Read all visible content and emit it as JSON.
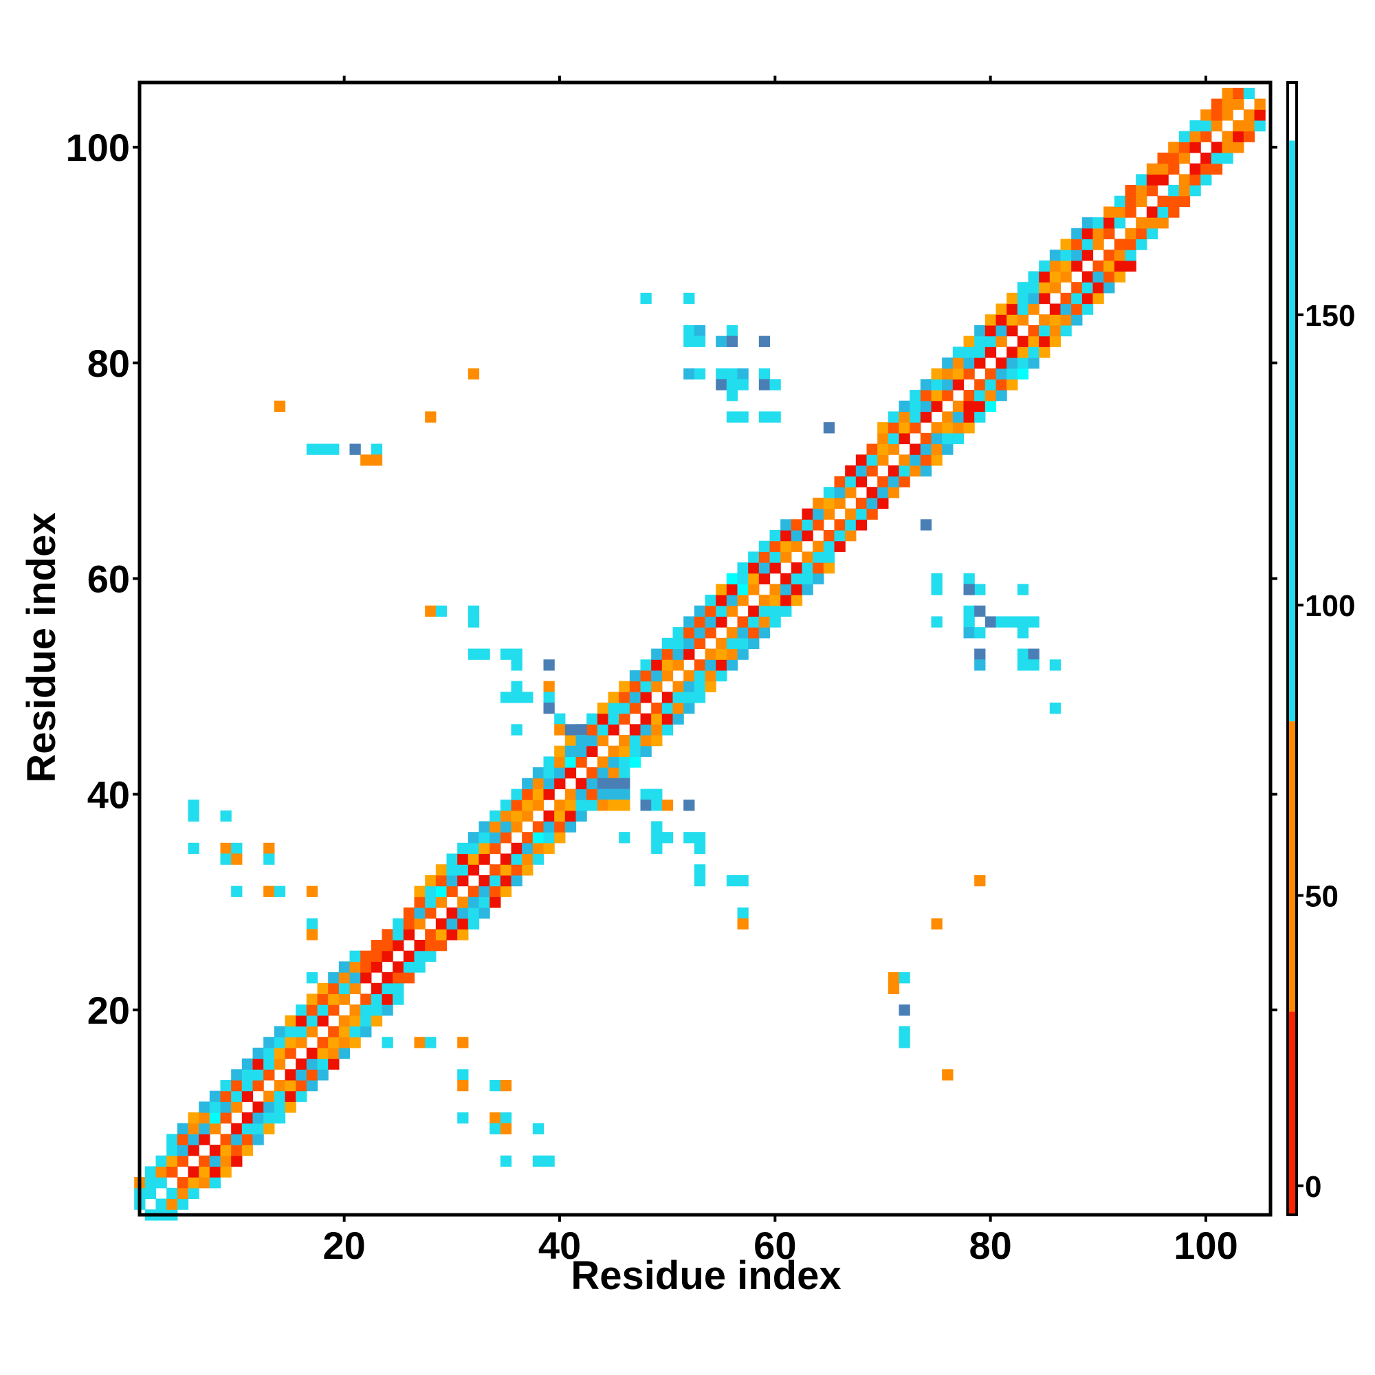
{
  "chart_data": {
    "type": "heatmap",
    "title": "",
    "xlabel": "Residue index",
    "ylabel": "Residue index",
    "xlim": [
      1,
      106
    ],
    "ylim": [
      1,
      106
    ],
    "x_ticks": [
      "20",
      "40",
      "60",
      "80",
      "100"
    ],
    "y_ticks": [
      "20",
      "40",
      "60",
      "80",
      "100"
    ],
    "colorbar": {
      "range": [
        -5,
        190
      ],
      "ticks": [
        "0",
        "50",
        "100",
        "150"
      ],
      "bands": [
        {
          "from": -5,
          "to": 30,
          "color": "#ff2200"
        },
        {
          "from": 30,
          "to": 80,
          "color": "#ff8800"
        },
        {
          "from": 80,
          "to": 180,
          "color": "#22ddee"
        },
        {
          "from": 180,
          "to": 190,
          "color": "#ffffff"
        }
      ]
    },
    "palette": {
      "red": "#ee1100",
      "orange_red": "#ff5500",
      "orange": "#ff8c00",
      "amber": "#ffa500",
      "cyan": "#22ddee",
      "bright_cyan": "#00ffff",
      "sky_blue": "#2bb8e0",
      "steel_blue": "#4a7fb5"
    },
    "diagonal_band": [
      {
        "from": 1,
        "to": 4,
        "half_width": 3,
        "pattern": "cyan"
      },
      {
        "from": 4,
        "to": 22,
        "half_width": 4,
        "pattern": "mixed"
      },
      {
        "from": 22,
        "to": 27,
        "half_width": 3,
        "pattern": "red_cyan"
      },
      {
        "from": 27,
        "to": 47,
        "half_width": 4,
        "pattern": "mixed"
      },
      {
        "from": 47,
        "to": 62,
        "half_width": 4,
        "pattern": "mixed"
      },
      {
        "from": 62,
        "to": 70,
        "half_width": 3,
        "pattern": "mixed"
      },
      {
        "from": 70,
        "to": 90,
        "half_width": 4,
        "pattern": "mixed"
      },
      {
        "from": 90,
        "to": 105,
        "half_width": 3,
        "pattern": "red_orange"
      }
    ],
    "off_diagonal_cells": [
      [
        6,
        39,
        "cyan"
      ],
      [
        6,
        38,
        "cyan"
      ],
      [
        9,
        38,
        "cyan"
      ],
      [
        6,
        35,
        "cyan"
      ],
      [
        9,
        35,
        "orange"
      ],
      [
        9,
        34,
        "cyan"
      ],
      [
        10,
        35,
        "cyan"
      ],
      [
        10,
        34,
        "orange"
      ],
      [
        13,
        35,
        "orange"
      ],
      [
        13,
        34,
        "cyan"
      ],
      [
        10,
        31,
        "cyan"
      ],
      [
        13,
        31,
        "orange"
      ],
      [
        14,
        31,
        "cyan"
      ],
      [
        17,
        31,
        "orange"
      ],
      [
        17,
        28,
        "cyan"
      ],
      [
        17,
        27,
        "orange"
      ],
      [
        17,
        23,
        "cyan"
      ],
      [
        14,
        76,
        "orange"
      ],
      [
        28,
        75,
        "orange"
      ],
      [
        32,
        79,
        "orange"
      ],
      [
        17,
        72,
        "cyan"
      ],
      [
        18,
        72,
        "cyan"
      ],
      [
        19,
        72,
        "cyan"
      ],
      [
        21,
        72,
        "steel_blue"
      ],
      [
        23,
        72,
        "cyan"
      ],
      [
        22,
        71,
        "orange"
      ],
      [
        23,
        71,
        "orange"
      ],
      [
        28,
        57,
        "orange"
      ],
      [
        29,
        57,
        "cyan"
      ],
      [
        32,
        57,
        "cyan"
      ],
      [
        32,
        56,
        "cyan"
      ],
      [
        32,
        53,
        "cyan"
      ],
      [
        33,
        53,
        "cyan"
      ],
      [
        35,
        53,
        "cyan"
      ],
      [
        36,
        53,
        "cyan"
      ],
      [
        36,
        52,
        "cyan"
      ],
      [
        39,
        52,
        "steel_blue"
      ],
      [
        36,
        50,
        "cyan"
      ],
      [
        35,
        49,
        "cyan"
      ],
      [
        36,
        49,
        "cyan"
      ],
      [
        37,
        49,
        "cyan"
      ],
      [
        39,
        50,
        "orange"
      ],
      [
        39,
        49,
        "cyan"
      ],
      [
        39,
        48,
        "steel_blue"
      ],
      [
        36,
        46,
        "cyan"
      ],
      [
        40,
        47,
        "cyan"
      ],
      [
        40,
        46,
        "orange"
      ],
      [
        41,
        46,
        "steel_blue"
      ],
      [
        42,
        46,
        "steel_blue"
      ],
      [
        42,
        45,
        "sky_blue"
      ],
      [
        41,
        44,
        "sky_blue"
      ],
      [
        44,
        41,
        "steel_blue"
      ],
      [
        45,
        41,
        "steel_blue"
      ],
      [
        46,
        41,
        "steel_blue"
      ],
      [
        44,
        40,
        "sky_blue"
      ],
      [
        45,
        40,
        "sky_blue"
      ],
      [
        46,
        40,
        "sky_blue"
      ],
      [
        44,
        39,
        "orange"
      ],
      [
        45,
        39,
        "amber"
      ],
      [
        46,
        39,
        "amber"
      ],
      [
        48,
        40,
        "cyan"
      ],
      [
        49,
        40,
        "cyan"
      ],
      [
        48,
        39,
        "steel_blue"
      ],
      [
        49,
        39,
        "cyan"
      ],
      [
        50,
        39,
        "orange"
      ],
      [
        52,
        39,
        "steel_blue"
      ],
      [
        46,
        36,
        "cyan"
      ],
      [
        49,
        37,
        "cyan"
      ],
      [
        49,
        36,
        "cyan"
      ],
      [
        50,
        36,
        "cyan"
      ],
      [
        49,
        35,
        "cyan"
      ],
      [
        52,
        36,
        "cyan"
      ],
      [
        53,
        36,
        "cyan"
      ],
      [
        53,
        35,
        "cyan"
      ],
      [
        53,
        33,
        "cyan"
      ],
      [
        53,
        32,
        "cyan"
      ],
      [
        56,
        32,
        "cyan"
      ],
      [
        57,
        32,
        "cyan"
      ],
      [
        57,
        29,
        "cyan"
      ],
      [
        57,
        28,
        "orange"
      ],
      [
        27,
        17,
        "orange"
      ],
      [
        28,
        17,
        "cyan"
      ],
      [
        24,
        17,
        "cyan"
      ],
      [
        31,
        17,
        "orange"
      ],
      [
        31,
        14,
        "cyan"
      ],
      [
        31,
        13,
        "orange"
      ],
      [
        34,
        13,
        "cyan"
      ],
      [
        35,
        13,
        "orange"
      ],
      [
        31,
        10,
        "cyan"
      ],
      [
        34,
        10,
        "orange"
      ],
      [
        35,
        10,
        "cyan"
      ],
      [
        34,
        9,
        "cyan"
      ],
      [
        35,
        9,
        "orange"
      ],
      [
        38,
        9,
        "cyan"
      ],
      [
        35,
        6,
        "cyan"
      ],
      [
        38,
        6,
        "cyan"
      ],
      [
        39,
        6,
        "cyan"
      ],
      [
        48,
        86,
        "cyan"
      ],
      [
        52,
        86,
        "cyan"
      ],
      [
        52,
        83,
        "cyan"
      ],
      [
        52,
        82,
        "cyan"
      ],
      [
        53,
        83,
        "sky_blue"
      ],
      [
        53,
        82,
        "cyan"
      ],
      [
        55,
        82,
        "sky_blue"
      ],
      [
        56,
        83,
        "cyan"
      ],
      [
        56,
        82,
        "steel_blue"
      ],
      [
        59,
        82,
        "steel_blue"
      ],
      [
        52,
        79,
        "sky_blue"
      ],
      [
        53,
        79,
        "cyan"
      ],
      [
        55,
        79,
        "cyan"
      ],
      [
        56,
        79,
        "cyan"
      ],
      [
        57,
        79,
        "sky_blue"
      ],
      [
        59,
        79,
        "cyan"
      ],
      [
        55,
        78,
        "steel_blue"
      ],
      [
        56,
        78,
        "cyan"
      ],
      [
        57,
        78,
        "cyan"
      ],
      [
        59,
        78,
        "steel_blue"
      ],
      [
        60,
        78,
        "cyan"
      ],
      [
        56,
        77,
        "cyan"
      ],
      [
        56,
        75,
        "cyan"
      ],
      [
        57,
        75,
        "cyan"
      ],
      [
        59,
        75,
        "cyan"
      ],
      [
        60,
        75,
        "cyan"
      ],
      [
        65,
        74,
        "steel_blue"
      ],
      [
        74,
        65,
        "steel_blue"
      ],
      [
        75,
        60,
        "cyan"
      ],
      [
        75,
        59,
        "cyan"
      ],
      [
        78,
        60,
        "cyan"
      ],
      [
        79,
        59,
        "cyan"
      ],
      [
        78,
        59,
        "steel_blue"
      ],
      [
        83,
        59,
        "cyan"
      ],
      [
        75,
        56,
        "cyan"
      ],
      [
        78,
        57,
        "cyan"
      ],
      [
        78,
        56,
        "cyan"
      ],
      [
        79,
        57,
        "steel_blue"
      ],
      [
        80,
        56,
        "steel_blue"
      ],
      [
        81,
        56,
        "cyan"
      ],
      [
        82,
        56,
        "cyan"
      ],
      [
        83,
        56,
        "cyan"
      ],
      [
        84,
        56,
        "cyan"
      ],
      [
        78,
        55,
        "sky_blue"
      ],
      [
        79,
        55,
        "cyan"
      ],
      [
        83,
        55,
        "cyan"
      ],
      [
        79,
        53,
        "steel_blue"
      ],
      [
        79,
        52,
        "sky_blue"
      ],
      [
        83,
        53,
        "cyan"
      ],
      [
        84,
        53,
        "steel_blue"
      ],
      [
        83,
        52,
        "cyan"
      ],
      [
        84,
        52,
        "cyan"
      ],
      [
        86,
        52,
        "cyan"
      ],
      [
        86,
        48,
        "cyan"
      ],
      [
        79,
        32,
        "orange"
      ],
      [
        75,
        28,
        "orange"
      ],
      [
        71,
        23,
        "orange"
      ],
      [
        72,
        23,
        "cyan"
      ],
      [
        71,
        22,
        "orange"
      ],
      [
        72,
        20,
        "steel_blue"
      ],
      [
        72,
        18,
        "cyan"
      ],
      [
        72,
        17,
        "cyan"
      ],
      [
        76,
        14,
        "orange"
      ]
    ]
  }
}
